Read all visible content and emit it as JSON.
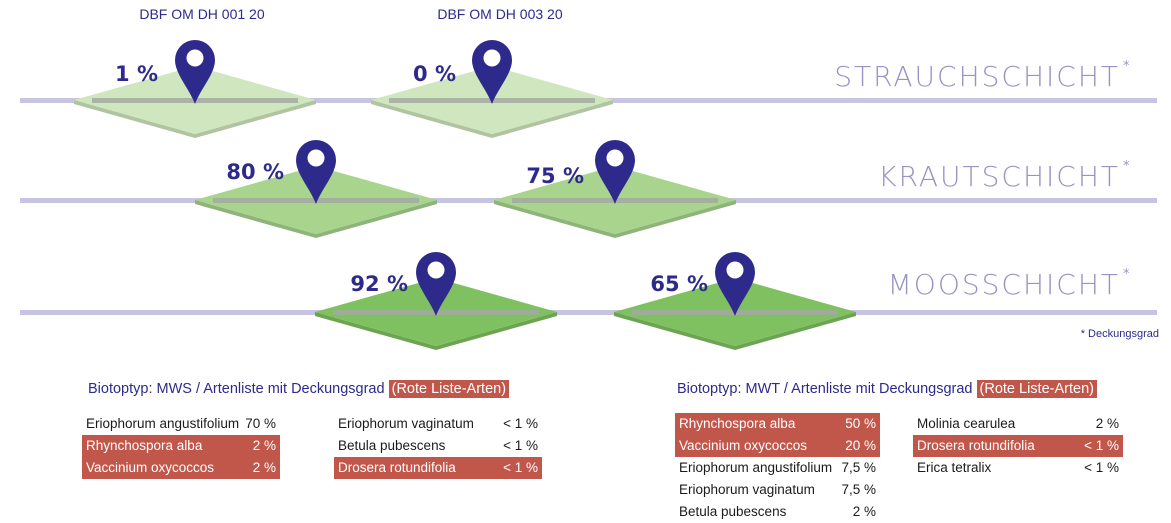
{
  "sites": [
    {
      "code": "DBF OM DH 001 20",
      "layers": [
        {
          "layer": "STRAUCHSCHICHT",
          "coverage_label": "1 %",
          "coverage": 1
        },
        {
          "layer": "KRAUTSCHICHT",
          "coverage_label": "80 %",
          "coverage": 80
        },
        {
          "layer": "MOOSSCHICHT",
          "coverage_label": "92 %",
          "coverage": 92
        }
      ],
      "biotop": {
        "text": "Biotoptyp: MWS / Artenliste mit Deckungsgrad",
        "tag": "(Rote Liste-Arten)",
        "columns": [
          [
            {
              "name": "Eriophorum angustifolium",
              "value": "70 %",
              "red_list": false
            },
            {
              "name": "Rhynchospora alba",
              "value": "2 %",
              "red_list": true
            },
            {
              "name": "Vaccinium oxycoccos",
              "value": "2 %",
              "red_list": true
            }
          ],
          [
            {
              "name": "Eriophorum vaginatum",
              "value": "< 1 %",
              "red_list": false
            },
            {
              "name": "Betula pubescens",
              "value": "< 1 %",
              "red_list": false
            },
            {
              "name": "Drosera rotundifolia",
              "value": "< 1 %",
              "red_list": true
            }
          ]
        ]
      }
    },
    {
      "code": "DBF OM DH 003  20",
      "layers": [
        {
          "layer": "STRAUCHSCHICHT",
          "coverage_label": "0 %",
          "coverage": 0
        },
        {
          "layer": "KRAUTSCHICHT",
          "coverage_label": "75 %",
          "coverage": 75
        },
        {
          "layer": "MOOSSCHICHT",
          "coverage_label": "65 %",
          "coverage": 65
        }
      ],
      "biotop": {
        "text": "Biotoptyp: MWT / Artenliste mit Deckungsgrad",
        "tag": "(Rote Liste-Arten)",
        "columns": [
          [
            {
              "name": "Rhynchospora alba",
              "value": "50 %",
              "red_list": true
            },
            {
              "name": "Vaccinium oxycoccos",
              "value": "20 %",
              "red_list": true
            },
            {
              "name": "Eriophorum angustifolium",
              "value": "7,5 %",
              "red_list": false
            },
            {
              "name": "Eriophorum vaginatum",
              "value": "7,5 %",
              "red_list": false
            },
            {
              "name": "Betula pubescens",
              "value": "2 %",
              "red_list": false
            }
          ],
          [
            {
              "name": "Molinia cearulea",
              "value": "2 %",
              "red_list": false
            },
            {
              "name": "Drosera rotundifolia",
              "value": "< 1 %",
              "red_list": true
            },
            {
              "name": "Erica tetralix",
              "value": "< 1 %",
              "red_list": false
            }
          ]
        ]
      }
    }
  ],
  "layer_labels": {
    "shrub": "STRAUCHSCHICHT",
    "herb": "KRAUTSCHICHT",
    "moss": "MOOSSCHICHT",
    "asterisk": "*"
  },
  "footnote": "* Deckungsgrad",
  "colors": {
    "primary": "#2e2a8c",
    "layer_line": "#c6c4e0",
    "layer_text": "#9893c6",
    "red_list": "#c0574a",
    "shrub_plate": "#cfe6bf",
    "herb_plate": "#a8d48e",
    "moss_plate": "#7fc160"
  },
  "icons": {
    "pin": "map-pin-icon"
  }
}
